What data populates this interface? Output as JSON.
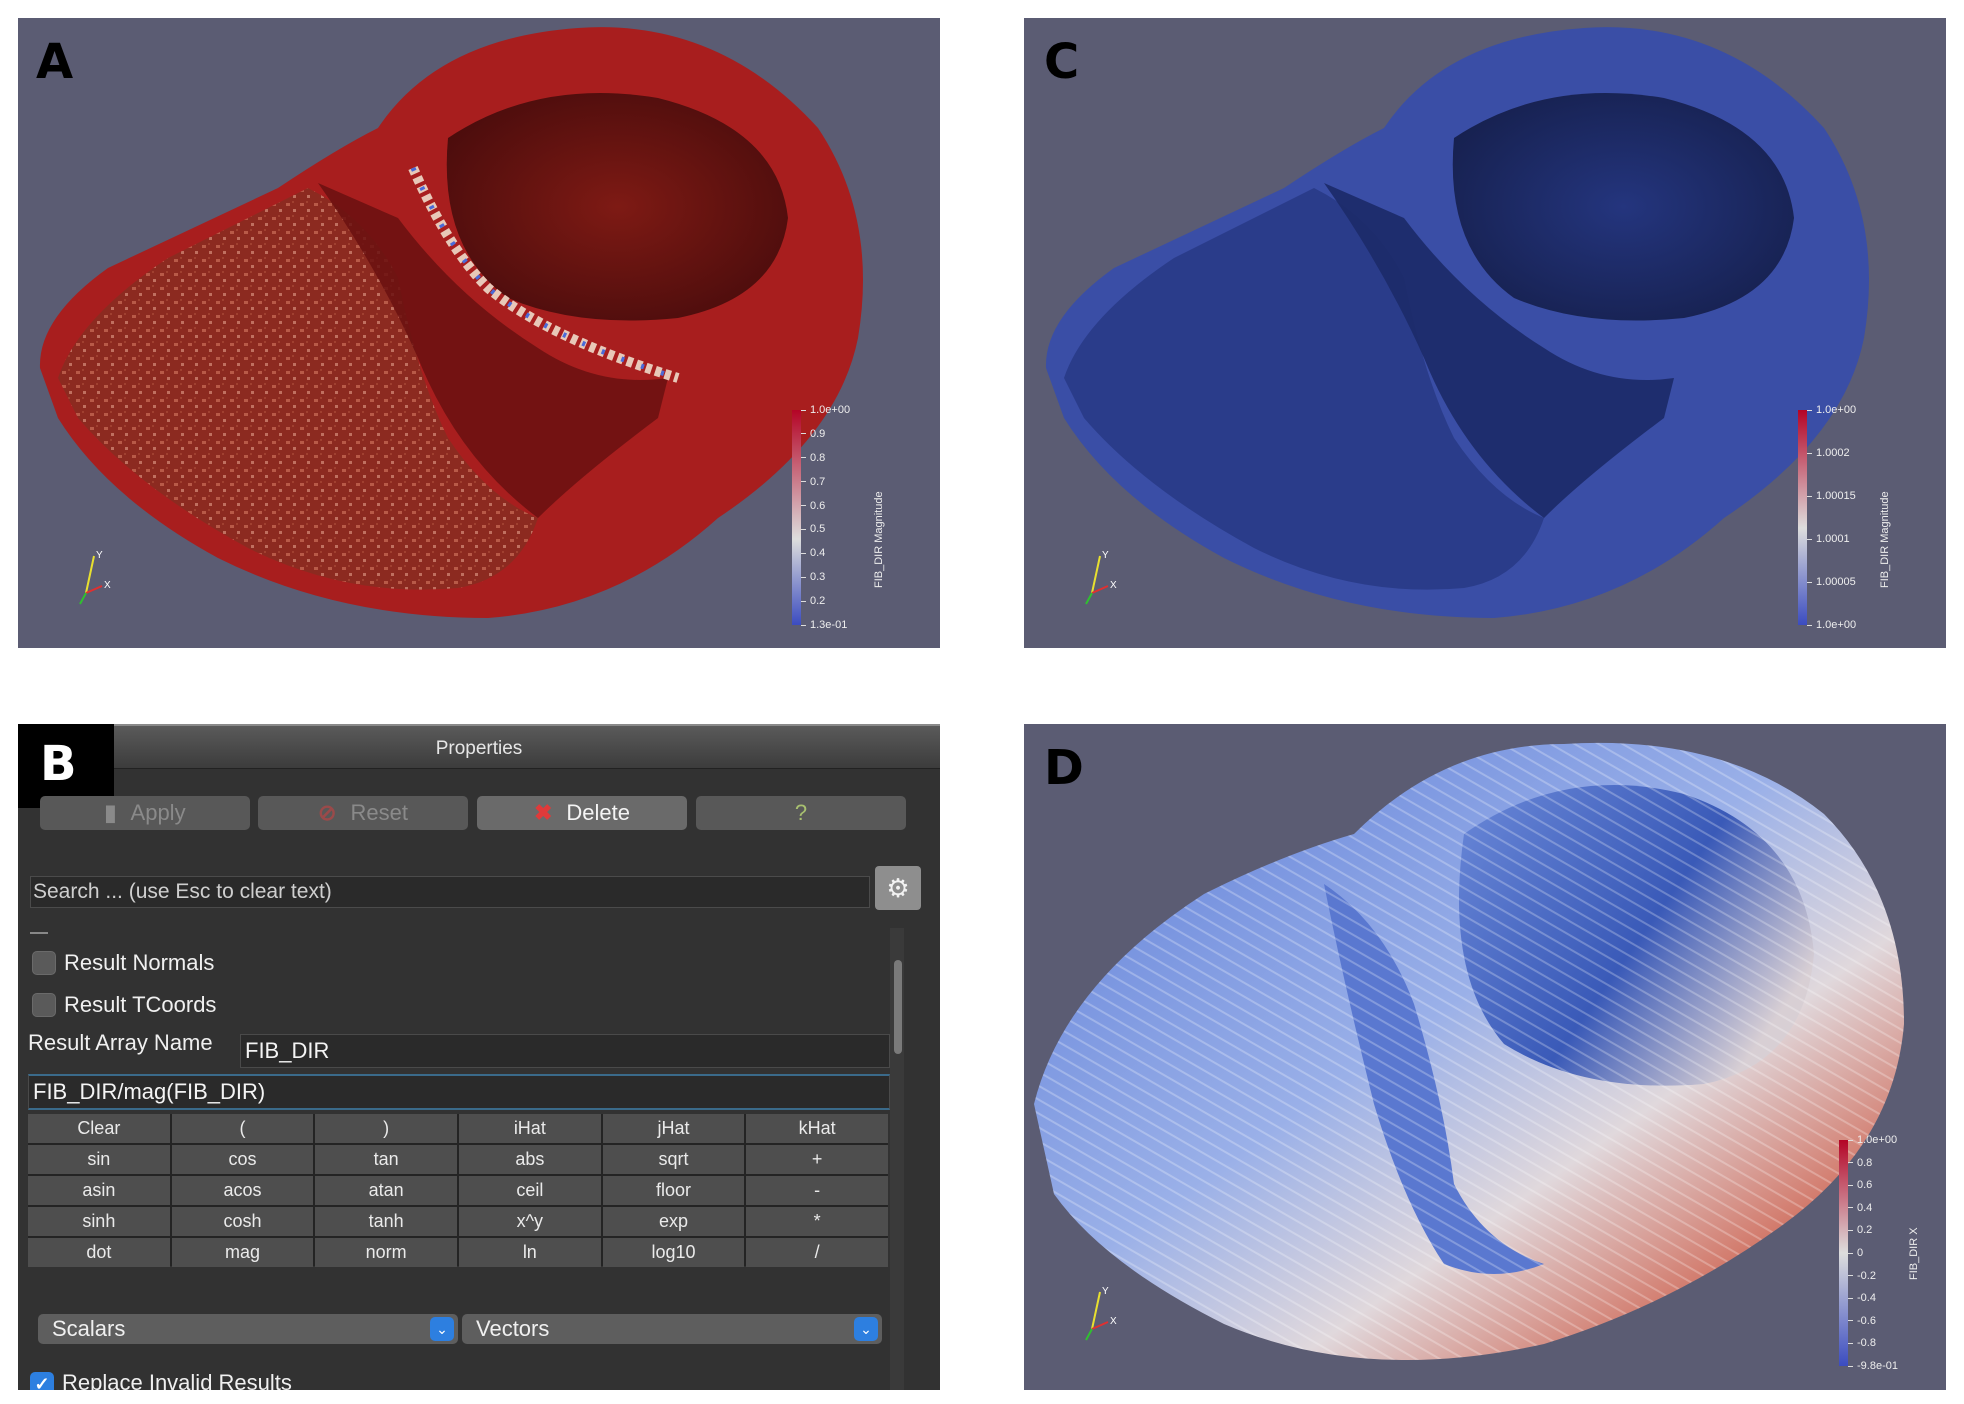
{
  "panels": {
    "a": {
      "letter": "A",
      "legend": {
        "title": "FIB_DIR Magnitude",
        "ticks": [
          "1.0e+00",
          "0.9",
          "0.8",
          "0.7",
          "0.6",
          "0.5",
          "0.4",
          "0.3",
          "0.2",
          "1.3e-01"
        ],
        "colors": {
          "top": "#b40426",
          "mid": "#dddddd",
          "bottom": "#3b4cc0"
        }
      },
      "axes": {
        "y": "Y",
        "x": "X"
      },
      "colors": {
        "tissue": "#a11c1c",
        "cavity": "#5e1010",
        "septum_highlight": "#f0d8c8"
      }
    },
    "b": {
      "letter": "B",
      "header_title": "Properties",
      "buttons": {
        "apply": "Apply",
        "reset": "Reset",
        "delete": "Delete",
        "help": "?"
      },
      "search": {
        "placeholder": "Search ... (use Esc to clear text)"
      },
      "result_normals_label": "Result Normals",
      "result_tcoords_label": "Result TCoords",
      "result_array_label": "Result Array Name",
      "result_array_value": "FIB_DIR",
      "expression": "FIB_DIR/mag(FIB_DIR)",
      "calc_keys": [
        "Clear",
        "(",
        ")",
        "iHat",
        "jHat",
        "kHat",
        "sin",
        "cos",
        "tan",
        "abs",
        "sqrt",
        "+",
        "asin",
        "acos",
        "atan",
        "ceil",
        "floor",
        "-",
        "sinh",
        "cosh",
        "tanh",
        "x^y",
        "exp",
        "*",
        "dot",
        "mag",
        "norm",
        "ln",
        "log10",
        "/"
      ],
      "scalars_label": "Scalars",
      "vectors_label": "Vectors",
      "replace_invalid_label": "Replace Invalid Results",
      "icons": [
        "apply-icon",
        "reset-icon",
        "delete-icon",
        "gear-icon",
        "chevron-down-icon",
        "checkmark-icon"
      ]
    },
    "c": {
      "letter": "C",
      "legend": {
        "title": "FIB_DIR Magnitude",
        "ticks": [
          "1.0e+00",
          "1.0002",
          "1.00015",
          "1.0001",
          "1.00005",
          "1.0e+00"
        ],
        "colors": {
          "top": "#b40426",
          "mid": "#dddddd",
          "bottom": "#3b4cc0"
        }
      },
      "axes": {
        "y": "Y",
        "x": "X"
      },
      "colors": {
        "tissue": "#3a4ea6",
        "cavity": "#1f2c6a"
      }
    },
    "d": {
      "letter": "D",
      "legend": {
        "title": "FIB_DIR X",
        "ticks": [
          "1.0e+00",
          "0.8",
          "0.6",
          "0.4",
          "0.2",
          "0",
          "-0.2",
          "-0.4",
          "-0.6",
          "-0.8",
          "-9.8e-01"
        ],
        "colors": {
          "top": "#b40426",
          "mid": "#dddddd",
          "bottom": "#3b4cc0"
        }
      },
      "axes": {
        "y": "Y",
        "x": "X"
      },
      "colors": {
        "blue": "#4a6fd0",
        "white": "#d8d8e0",
        "red": "#c0392b"
      }
    }
  }
}
